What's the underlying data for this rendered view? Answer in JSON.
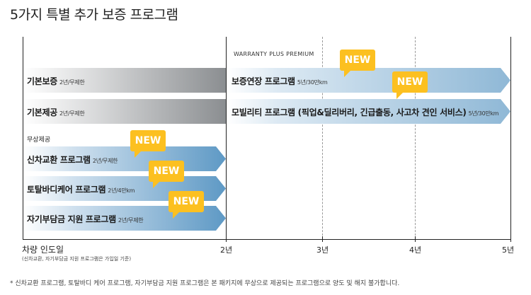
{
  "title": "5가지 특별 추가 보증 프로그램",
  "premium_label": "WARRANTY PLUS PREMIUM",
  "section_label": "무상제공",
  "rows": {
    "basic_warranty": {
      "label": "기본보증",
      "sub": "2년/무제한"
    },
    "basic_service": {
      "label": "기본제공",
      "sub": "2년/무제한"
    },
    "extended_warranty": {
      "label": "보증연장 프로그램",
      "sub": "5년/30만km"
    },
    "mobility": {
      "label": "모빌리티 프로그램 (픽업&딜리버리, 긴급출동, 사고차 견인 서비스)",
      "sub": "5년/30만km"
    },
    "new_car_exchange": {
      "label": "신차교환 프로그램",
      "sub": "2년/무제한"
    },
    "total_body_care": {
      "label": "토탈바디케어 프로그램",
      "sub": "2년/4만km"
    },
    "deductible_support": {
      "label": "자기부담금 지원 프로그램",
      "sub": "2년/무제한"
    }
  },
  "badge_text": "NEW",
  "axis": {
    "start_label": "차량 인도일",
    "start_note": "(신차교환, 자기부담금 지원 프로그램은 가입일 기준)",
    "ticks": [
      "2년",
      "3년",
      "4년",
      "5년"
    ]
  },
  "footnote": "* 신차교환 프로그램, 토탈바디 케어 프로그램, 자기부담금 지원 프로그램은 본 패키지에 무상으로 제공되는 프로그램으로 양도 및 해지 불가합니다.",
  "colors": {
    "badge": "#fcc020",
    "blue_bar": "#5e99c5",
    "grey_bar": "#8b8e91"
  }
}
